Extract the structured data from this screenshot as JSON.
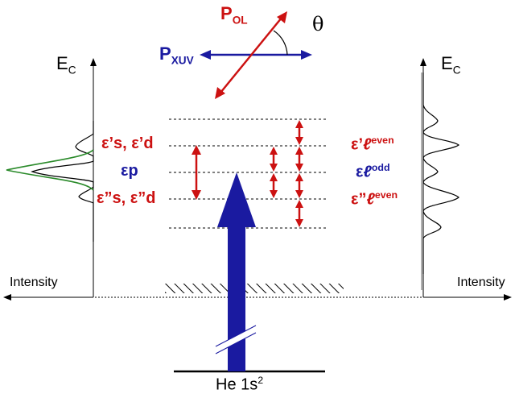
{
  "labels": {
    "ec_left": "E",
    "ec_left_sub": "C",
    "ec_right": "E",
    "ec_right_sub": "C",
    "intensity_left": "Intensity",
    "intensity_right": "Intensity",
    "p_ol": "P",
    "p_ol_sub": "OL",
    "p_xuv": "P",
    "p_xuv_sub": "XUV",
    "theta": "θ",
    "eps_s_d": "ε’s, ε’d",
    "eps_p": "εp",
    "eps2_s_d": "ε”s, ε”d",
    "eps_l_even_top_pre": "ε’",
    "eps_l_odd_pre": "ε",
    "eps_l_even_bot_pre": "ε”",
    "ell": "ℓ",
    "even": "even",
    "odd": "odd",
    "ground_state": "He 1s",
    "ground_state_sup": "2"
  },
  "colors": {
    "red": "#cc1111",
    "blue": "#1a1aa0",
    "green": "#2a8a2a",
    "black": "#000000"
  }
}
